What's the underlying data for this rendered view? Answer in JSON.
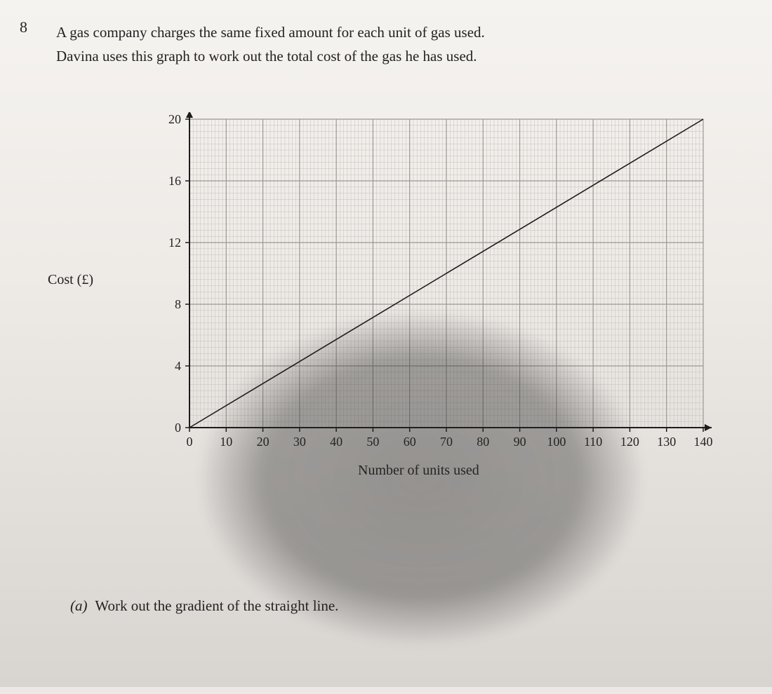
{
  "question": {
    "number": "8",
    "line1": "A gas company charges the same fixed amount for each unit of gas used.",
    "line2": "Davina uses this graph to work out the total cost of the gas he has used."
  },
  "chart": {
    "type": "line",
    "ylabel": "Cost (£)",
    "xlabel": "Number of units used",
    "xlim": [
      0,
      140
    ],
    "ylim": [
      0,
      20
    ],
    "xtick_major_step": 10,
    "ytick_major_step": 4,
    "xtick_minor_step": 1,
    "ytick_minor_step": 0.4,
    "xticklabels": [
      "0",
      "10",
      "20",
      "30",
      "40",
      "50",
      "60",
      "70",
      "80",
      "90",
      "100",
      "110",
      "120",
      "130",
      "140"
    ],
    "yticklabels": [
      "0",
      "4",
      "8",
      "12",
      "16",
      "20"
    ],
    "line": {
      "x": [
        0,
        140
      ],
      "y": [
        0,
        20
      ],
      "color": "#1c1c1c",
      "width": 1.6
    },
    "grid": {
      "major_color": "#9b9894",
      "minor_color": "#c4c0bc",
      "major_width": 1.2,
      "minor_width": 0.5
    },
    "axis": {
      "color": "#1c1c1c",
      "width": 2,
      "arrow": true
    },
    "background_color": "transparent",
    "tick_fontsize": 18,
    "label_fontsize": 20
  },
  "subquestion": {
    "marker": "(a)",
    "text": "Work out the gradient of the straight line."
  },
  "colors": {
    "page_bg": "#ece8e5",
    "text": "#222222"
  }
}
